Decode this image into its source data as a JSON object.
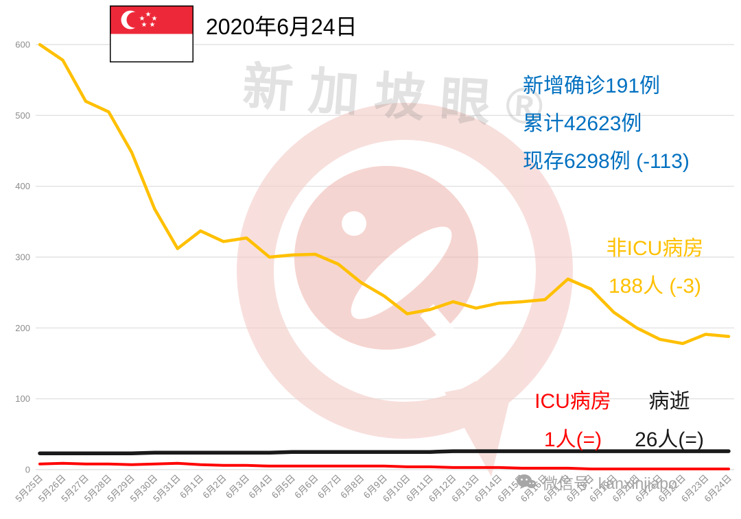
{
  "header": {
    "date_title": "2020年6月24日",
    "flag": "singapore-flag"
  },
  "annotations": {
    "new_cases": "新增确诊191例",
    "total_cases": "累计42623例",
    "active_cases": "现存6298例 (-113)",
    "non_icu_label": "非ICU病房",
    "non_icu_value": "188人 (-3)",
    "icu_label": "ICU病房",
    "icu_value": "1人(=)",
    "deaths_label": "病逝",
    "deaths_value": "26人(=)"
  },
  "watermark": {
    "brand": "新加坡眼®",
    "wechat": "微信号: kanxinjiapo"
  },
  "colors": {
    "stats_blue": "#0070C0",
    "non_icu_yellow": "#FFC000",
    "icu_red": "#FF0000",
    "deaths_black": "#1A1A1A",
    "grid_gray": "#DCDCDC",
    "axis_text_gray": "#8C8C8C",
    "watermark_pink": "#F0BDB8"
  },
  "chart_data": {
    "type": "line",
    "title": "2020年6月24日",
    "xlabel": "",
    "ylabel": "",
    "ylim": [
      0,
      600
    ],
    "yticks": [
      0,
      100,
      200,
      300,
      400,
      500,
      600
    ],
    "grid": true,
    "legend_position": "inline-annotations",
    "x": [
      "5月25日",
      "5月26日",
      "5月27日",
      "5月28日",
      "5月29日",
      "5月30日",
      "5月31日",
      "6月1日",
      "6月2日",
      "6月3日",
      "6月4日",
      "6月5日",
      "6月6日",
      "6月7日",
      "6月8日",
      "6月9日",
      "6月10日",
      "6月11日",
      "6月12日",
      "6月13日",
      "6月14日",
      "6月15日",
      "6月16日",
      "6月17日",
      "6月18日",
      "6月19日",
      "6月20日",
      "6月21日",
      "6月22日",
      "6月23日",
      "6月24日"
    ],
    "series": [
      {
        "id": "non_icu",
        "name": "非ICU病房",
        "color": "#FFC000",
        "values": [
          600,
          578,
          520,
          505,
          448,
          368,
          312,
          337,
          322,
          327,
          300,
          303,
          304,
          290,
          264,
          245,
          220,
          226,
          237,
          228,
          235,
          237,
          240,
          269,
          255,
          222,
          200,
          184,
          178,
          191,
          188
        ]
      },
      {
        "id": "deaths",
        "name": "病逝",
        "color": "#1A1A1A",
        "values": [
          23,
          23,
          23,
          23,
          23,
          24,
          24,
          24,
          24,
          24,
          24,
          25,
          25,
          25,
          25,
          25,
          25,
          25,
          26,
          26,
          26,
          26,
          26,
          26,
          26,
          26,
          26,
          26,
          26,
          26,
          26
        ]
      },
      {
        "id": "icu",
        "name": "ICU病房",
        "color": "#FF0000",
        "values": [
          8,
          9,
          8,
          8,
          7,
          8,
          9,
          7,
          6,
          6,
          5,
          5,
          5,
          5,
          5,
          5,
          4,
          4,
          3,
          3,
          3,
          2,
          2,
          2,
          1,
          1,
          1,
          1,
          1,
          1,
          1
        ]
      }
    ]
  }
}
